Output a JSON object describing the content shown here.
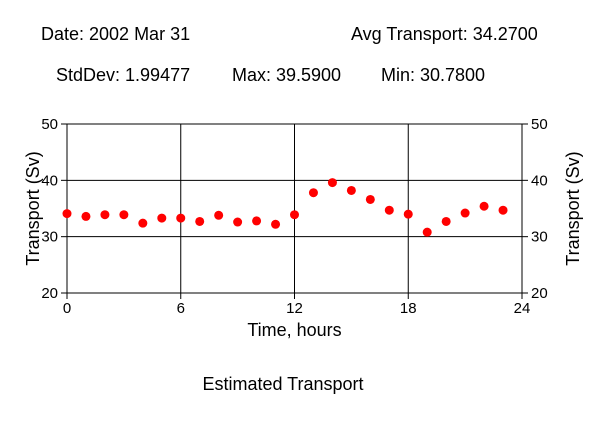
{
  "header": {
    "date": "Date: 2002 Mar 31",
    "avg": "Avg Transport: 34.2700",
    "stddev": "StdDev: 1.99477",
    "max": "Max: 39.5900",
    "min": "Min: 30.7800"
  },
  "caption": "Estimated Transport",
  "chart_data": {
    "type": "scatter",
    "title": "",
    "xlabel": "Time, hours",
    "ylabel": "Transport (Sv)",
    "ylabel_right": "Transport (Sv)",
    "xlim": [
      0,
      24
    ],
    "ylim": [
      20,
      50
    ],
    "xticks": [
      0,
      6,
      12,
      18,
      24
    ],
    "yticks": [
      20,
      30,
      40,
      50
    ],
    "grid": true,
    "point_color": "#ff0000",
    "series": [
      {
        "x": [
          0,
          1,
          2,
          3,
          4,
          5,
          6,
          7,
          8,
          9,
          10,
          11,
          12,
          13,
          14,
          15,
          16,
          17,
          18,
          19,
          20,
          21,
          22,
          23
        ],
        "y": [
          34.1,
          33.6,
          33.9,
          33.9,
          32.4,
          33.3,
          33.3,
          32.7,
          33.8,
          32.6,
          32.8,
          32.2,
          33.9,
          37.8,
          39.6,
          38.2,
          36.6,
          34.7,
          34.0,
          30.8,
          32.7,
          34.2,
          35.4,
          34.7
        ]
      }
    ]
  }
}
